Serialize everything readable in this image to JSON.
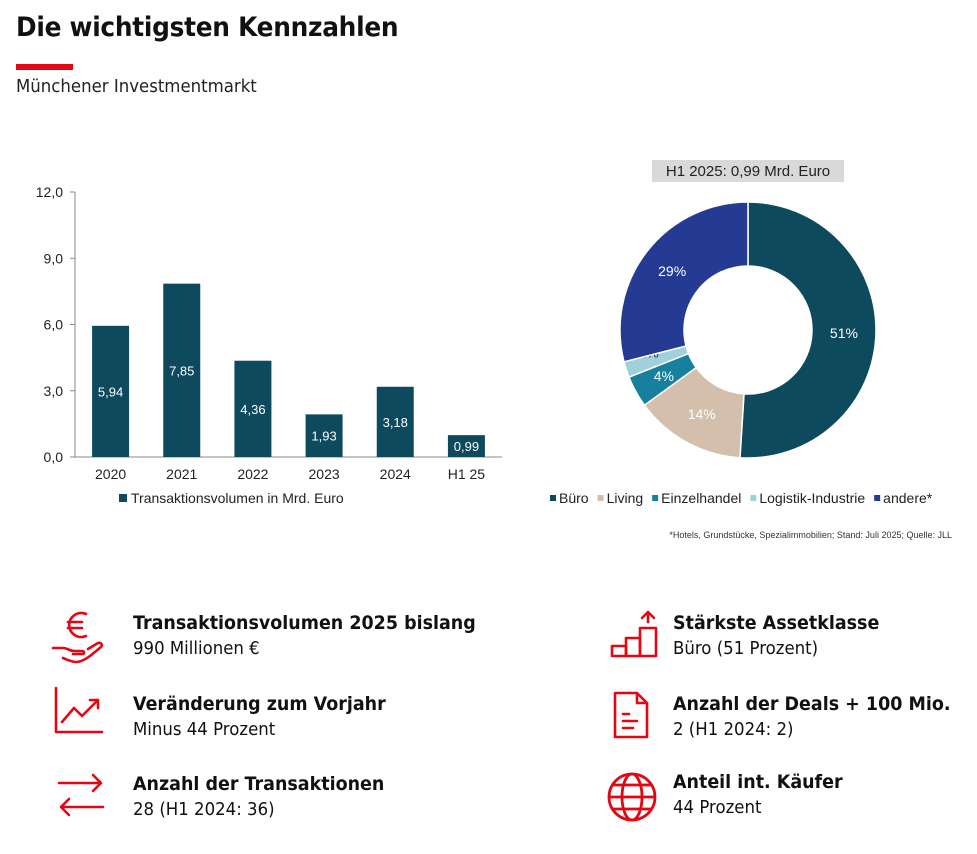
{
  "header": {
    "title": "Die wichtigsten Kennzahlen",
    "subtitle": "Münchener Investmentmarkt"
  },
  "colors": {
    "accent": "#e30613",
    "bar": "#0d4a5e"
  },
  "chart_data": [
    {
      "type": "bar",
      "categories": [
        "2020",
        "2021",
        "2022",
        "2023",
        "2024",
        "H1 25"
      ],
      "series": [
        {
          "name": "Transaktionsvolumen in Mrd. Euro",
          "values": [
            5.94,
            7.85,
            4.36,
            1.93,
            3.18,
            0.99
          ]
        }
      ],
      "data_labels": [
        "5,94",
        "7,85",
        "4,36",
        "1,93",
        "3,18",
        "0,99"
      ],
      "ylim": [
        0,
        12
      ],
      "yticks": [
        "0,0",
        "3,0",
        "6,0",
        "9,0",
        "12,0"
      ],
      "legend": "bottom"
    },
    {
      "type": "pie",
      "title": "H1 2025: 0,99 Mrd. Euro",
      "donut": true,
      "slices": [
        {
          "label": "Büro",
          "value": 51,
          "text": "51%",
          "color": "#0d4a5e"
        },
        {
          "label": "Living",
          "value": 14,
          "text": "14%",
          "color": "#d3bfac"
        },
        {
          "label": "Einzelhandel",
          "value": 4,
          "text": "4%",
          "color": "#17809e"
        },
        {
          "label": "Logistik-Industrie",
          "value": 2,
          "text": "2%",
          "color": "#9fd0dc"
        },
        {
          "label": "andere*",
          "value": 29,
          "text": "29%",
          "color": "#253a93"
        }
      ],
      "legend": "bottom",
      "footnote": "*Hotels, Grundstücke, Spezialimmobilien; Stand: Juli 2025; Quelle: JLL"
    }
  ],
  "kpis": [
    {
      "icon": "euro-hand-icon",
      "title": "Transaktionsvolumen 2025 bislang",
      "value": "990 Millionen €"
    },
    {
      "icon": "trend-chart-icon",
      "title": "Veränderung zum Vorjahr",
      "value": "Minus 44 Prozent"
    },
    {
      "icon": "exchange-arrows-icon",
      "title": "Anzahl der Transaktionen",
      "value": "28 (H1 2024: 36)"
    },
    {
      "icon": "stairs-growth-icon",
      "title": "Stärkste Assetklasse",
      "value": "Büro (51 Prozent)"
    },
    {
      "icon": "document-icon",
      "title": "Anzahl der Deals + 100 Mio.",
      "value": "2 (H1 2024: 2)"
    },
    {
      "icon": "globe-icon",
      "title": "Anteil int. Käufer",
      "value": "44 Prozent"
    }
  ]
}
